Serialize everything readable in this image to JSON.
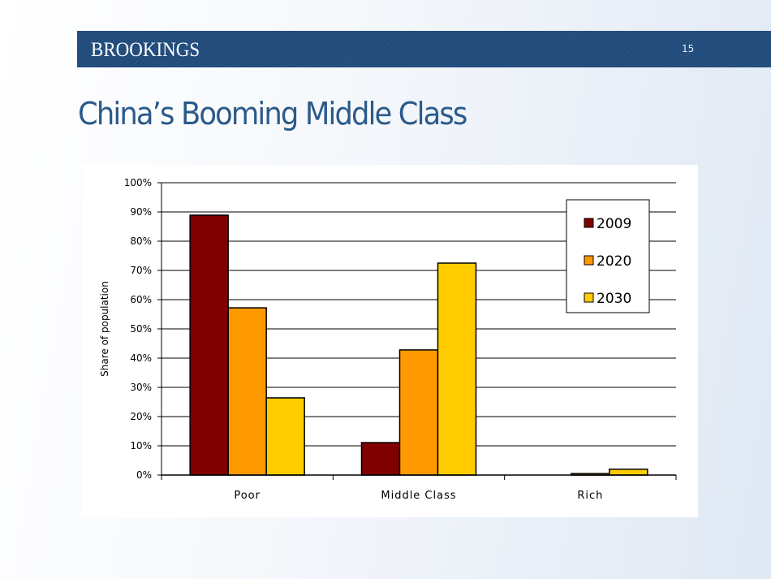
{
  "header": {
    "brand": "BROOKINGS",
    "page_number": "15",
    "banner_color": "#1f4a7a"
  },
  "slide": {
    "title": "China’s Booming Middle Class",
    "title_color": "#2b5a8a"
  },
  "chart_data": {
    "type": "bar",
    "title": "",
    "xlabel": "",
    "ylabel": "Share of population",
    "ylim": [
      0,
      100
    ],
    "y_ticks": [
      "0%",
      "10%",
      "20%",
      "30%",
      "40%",
      "50%",
      "60%",
      "70%",
      "80%",
      "90%",
      "100%"
    ],
    "grid": true,
    "legend_position": "upper right (inside)",
    "categories": [
      "Poor",
      "Middle Class",
      "Rich"
    ],
    "series": [
      {
        "name": "2009",
        "color": "#800000",
        "values": [
          88.9,
          11.1,
          0.0
        ]
      },
      {
        "name": "2020",
        "color": "#ff9900",
        "values": [
          57.2,
          42.8,
          0.5
        ]
      },
      {
        "name": "2030",
        "color": "#ffcc00",
        "values": [
          26.4,
          72.5,
          2.0
        ]
      }
    ]
  }
}
